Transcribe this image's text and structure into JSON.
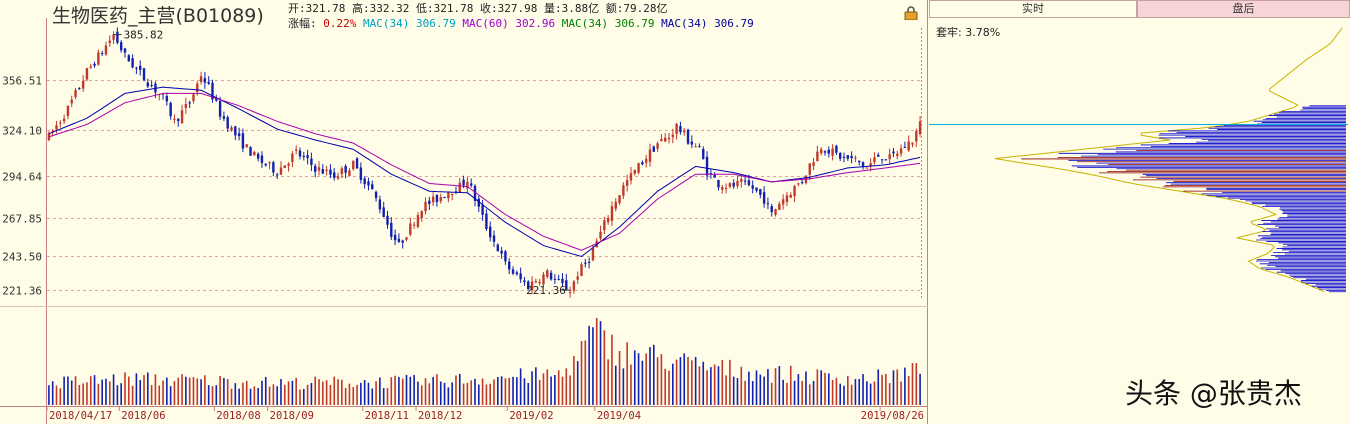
{
  "header": {
    "title": "生物医药_主营(B01089)",
    "open_label": "开:",
    "open": "321.78",
    "high_label": "高:",
    "high": "332.32",
    "low_label": "低:",
    "low": "321.78",
    "close_label": "收:",
    "close": "327.98",
    "volume_label": "量:",
    "volume": "3.88亿",
    "amount_label": "额:",
    "amount": "79.28亿",
    "change_label": "涨幅:",
    "change": "0.22%",
    "ma": [
      {
        "label": "MAC(34)",
        "value": "306.79",
        "color": "#00a0c0"
      },
      {
        "label": "MAC(60)",
        "value": "302.96",
        "color": "#9900cc"
      },
      {
        "label": "MAC(34)",
        "value": "306.79",
        "color": "#008000"
      },
      {
        "label": "MAC(34)",
        "value": "306.79",
        "color": "#000099"
      }
    ]
  },
  "tabs": {
    "realtime": "实时",
    "adjusted": "盘后"
  },
  "chip_panel": {
    "trapped_label": "套牢: 3.78%",
    "current_price": 327.98
  },
  "watermark": "头条 @张贵杰",
  "icons": {
    "lock": "lock-icon"
  },
  "colors": {
    "up": "#c0392b",
    "down": "#1020b0",
    "ma_a": "#0000aa",
    "ma_b": "#aa00aa",
    "grid": "#e8a0a0",
    "chip_old": "#c8b400",
    "chip_mid": "#8b0000",
    "chip_new": "#0000cc"
  },
  "chart_data": {
    "type": "candlestick",
    "y_ticks": [
      "356.51",
      "324.10",
      "294.64",
      "267.85",
      "243.50",
      "221.36"
    ],
    "x_ticks": [
      "2018/04/17",
      "2018/06",
      "2018/08",
      "2018/09",
      "2018/11",
      "2018/12",
      "2019/02",
      "2019/04",
      "2019/08/26"
    ],
    "annotations": [
      {
        "label": "385.82",
        "type": "high"
      },
      {
        "label": "221.36",
        "type": "low"
      }
    ],
    "ylim": [
      215,
      392
    ],
    "price_path": [
      [
        0,
        320
      ],
      [
        5,
        338
      ],
      [
        10,
        362
      ],
      [
        14,
        375
      ],
      [
        17,
        385.82
      ],
      [
        20,
        372
      ],
      [
        25,
        358
      ],
      [
        30,
        345
      ],
      [
        33,
        330
      ],
      [
        37,
        342
      ],
      [
        40,
        360
      ],
      [
        42,
        352
      ],
      [
        45,
        335
      ],
      [
        50,
        318
      ],
      [
        55,
        305
      ],
      [
        60,
        298
      ],
      [
        65,
        310
      ],
      [
        70,
        300
      ],
      [
        75,
        295
      ],
      [
        80,
        302
      ],
      [
        85,
        285
      ],
      [
        88,
        270
      ],
      [
        90,
        258
      ],
      [
        92,
        250
      ],
      [
        95,
        262
      ],
      [
        98,
        275
      ],
      [
        102,
        280
      ],
      [
        105,
        285
      ],
      [
        108,
        288
      ],
      [
        110,
        293
      ],
      [
        112,
        280
      ],
      [
        115,
        262
      ],
      [
        118,
        248
      ],
      [
        120,
        238
      ],
      [
        123,
        230
      ],
      [
        126,
        224
      ],
      [
        128,
        228
      ],
      [
        131,
        232
      ],
      [
        134,
        226
      ],
      [
        137,
        221.36
      ],
      [
        139,
        232
      ],
      [
        142,
        242
      ],
      [
        145,
        258
      ],
      [
        148,
        275
      ],
      [
        151,
        288
      ],
      [
        154,
        298
      ],
      [
        157,
        307
      ],
      [
        160,
        316
      ],
      [
        163,
        320
      ],
      [
        165,
        327
      ],
      [
        168,
        318
      ],
      [
        171,
        312
      ],
      [
        173,
        298
      ],
      [
        176,
        290
      ],
      [
        179,
        288
      ],
      [
        182,
        290
      ],
      [
        185,
        287
      ],
      [
        188,
        280
      ],
      [
        190,
        270
      ],
      [
        192,
        278
      ],
      [
        195,
        285
      ],
      [
        198,
        292
      ],
      [
        200,
        302
      ],
      [
        203,
        314
      ],
      [
        206,
        310
      ],
      [
        209,
        306
      ],
      [
        212,
        305
      ],
      [
        215,
        300
      ],
      [
        218,
        308
      ],
      [
        221,
        306
      ],
      [
        224,
        312
      ],
      [
        227,
        318
      ],
      [
        229,
        327.98
      ]
    ],
    "ma_a_path": [
      [
        0,
        322
      ],
      [
        10,
        332
      ],
      [
        20,
        348
      ],
      [
        30,
        352
      ],
      [
        40,
        350
      ],
      [
        50,
        338
      ],
      [
        60,
        325
      ],
      [
        70,
        318
      ],
      [
        80,
        312
      ],
      [
        90,
        296
      ],
      [
        100,
        285
      ],
      [
        110,
        284
      ],
      [
        120,
        265
      ],
      [
        130,
        250
      ],
      [
        140,
        243
      ],
      [
        150,
        262
      ],
      [
        160,
        285
      ],
      [
        170,
        301
      ],
      [
        180,
        297
      ],
      [
        190,
        291
      ],
      [
        200,
        294
      ],
      [
        210,
        300
      ],
      [
        220,
        302
      ],
      [
        229,
        306.79
      ]
    ],
    "ma_b_path": [
      [
        0,
        320
      ],
      [
        10,
        328
      ],
      [
        20,
        342
      ],
      [
        30,
        348
      ],
      [
        40,
        348
      ],
      [
        50,
        340
      ],
      [
        60,
        330
      ],
      [
        70,
        322
      ],
      [
        80,
        316
      ],
      [
        90,
        302
      ],
      [
        100,
        290
      ],
      [
        110,
        288
      ],
      [
        120,
        270
      ],
      [
        130,
        256
      ],
      [
        140,
        247
      ],
      [
        150,
        258
      ],
      [
        160,
        280
      ],
      [
        170,
        296
      ],
      [
        180,
        296
      ],
      [
        190,
        291
      ],
      [
        200,
        293
      ],
      [
        210,
        297
      ],
      [
        220,
        300
      ],
      [
        229,
        302.96
      ]
    ],
    "volume_path": [
      [
        0,
        0.25
      ],
      [
        20,
        0.3
      ],
      [
        40,
        0.28
      ],
      [
        60,
        0.25
      ],
      [
        80,
        0.26
      ],
      [
        100,
        0.27
      ],
      [
        120,
        0.32
      ],
      [
        135,
        0.35
      ],
      [
        140,
        0.62
      ],
      [
        143,
        0.85
      ],
      [
        150,
        0.6
      ],
      [
        160,
        0.55
      ],
      [
        170,
        0.45
      ],
      [
        185,
        0.38
      ],
      [
        200,
        0.33
      ],
      [
        215,
        0.3
      ],
      [
        225,
        0.36
      ],
      [
        229,
        0.4
      ]
    ],
    "chip_profile": [
      [
        390,
        0.01
      ],
      [
        380,
        0.04
      ],
      [
        370,
        0.1
      ],
      [
        360,
        0.15
      ],
      [
        350,
        0.2
      ],
      [
        340,
        0.12
      ],
      [
        330,
        0.25
      ],
      [
        326,
        0.35
      ],
      [
        322,
        0.55
      ],
      [
        318,
        0.45
      ],
      [
        314,
        0.6
      ],
      [
        310,
        0.75
      ],
      [
        306,
        0.9
      ],
      [
        302,
        0.8
      ],
      [
        298,
        0.7
      ],
      [
        294,
        0.62
      ],
      [
        290,
        0.55
      ],
      [
        286,
        0.45
      ],
      [
        280,
        0.3
      ],
      [
        275,
        0.22
      ],
      [
        270,
        0.18
      ],
      [
        265,
        0.25
      ],
      [
        260,
        0.2
      ],
      [
        255,
        0.28
      ],
      [
        250,
        0.18
      ],
      [
        245,
        0.2
      ],
      [
        240,
        0.25
      ],
      [
        235,
        0.22
      ],
      [
        230,
        0.15
      ],
      [
        225,
        0.1
      ],
      [
        220,
        0.05
      ]
    ]
  }
}
